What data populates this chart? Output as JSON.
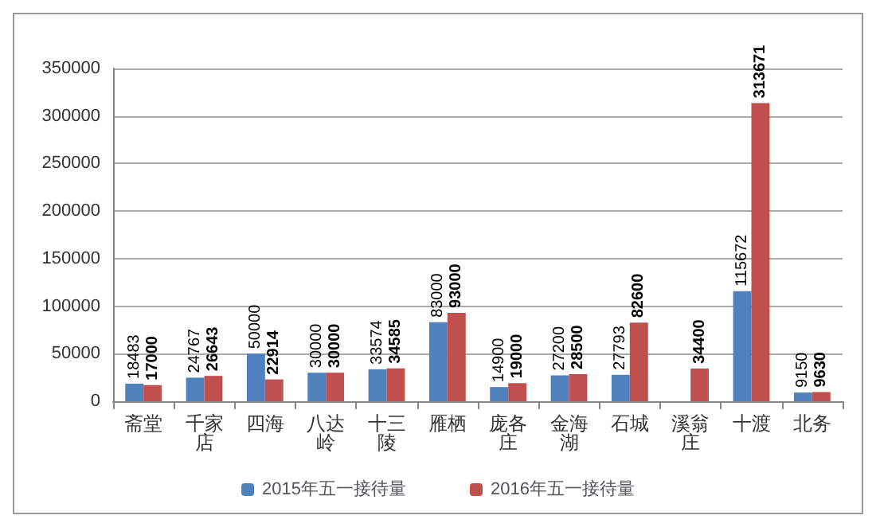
{
  "chart_data": {
    "type": "bar",
    "categories": [
      "斋堂",
      "千家店",
      "四海",
      "八达岭",
      "十三陵",
      "雁栖",
      "庞各庄",
      "金海湖",
      "石城",
      "溪翁庄",
      "十渡",
      "北务"
    ],
    "series": [
      {
        "name": "2015年五一接待量",
        "color": "#4f81bd",
        "values": [
          18483,
          24767,
          50000,
          30000,
          33574,
          83000,
          14900,
          27200,
          27793,
          null,
          115672,
          9150
        ]
      },
      {
        "name": "2016年五一接待量",
        "color": "#c0504d",
        "values": [
          17000,
          26643,
          22914,
          30000,
          34585,
          93000,
          19000,
          28500,
          82600,
          34400,
          313671,
          9630
        ]
      }
    ],
    "ylim": [
      0,
      350000
    ],
    "yticks": [
      0,
      50000,
      100000,
      150000,
      200000,
      250000,
      300000,
      350000
    ],
    "grid": "y",
    "legend": "bottom",
    "data_labels": true
  }
}
